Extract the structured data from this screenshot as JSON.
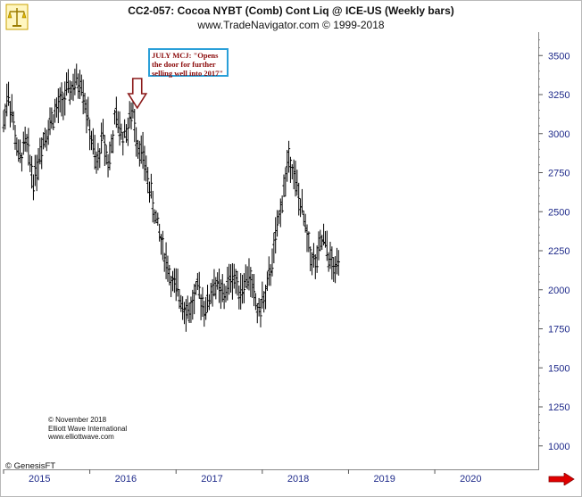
{
  "header": {
    "title": "CC2-057:  Cocoa NYBT (Comb) Cont Liq @ ICE-US  (Weekly bars)",
    "subtitle": "www.TradeNavigator.com © 1999-2018"
  },
  "annotation": {
    "text": "JULY MCJ: \"Opens the door for further selling well into 2017\"",
    "arrow_x": 2016.55
  },
  "credit": {
    "line1": "© November 2018",
    "line2": "Elliott Wave International",
    "line3": "www.elliottwave.com"
  },
  "brand": "© GenesisFT",
  "icons": {
    "logo": "scale-icon",
    "nav": "right-arrow-icon"
  },
  "colors": {
    "bars": "#000000",
    "annotation_border": "#2a9fd8",
    "annotation_text": "#8b0a0a",
    "arrow": "#8b1a1a",
    "axis_labels": "#1e2a8a",
    "nav_arrow": "#e00000"
  },
  "chart_data": {
    "type": "ohlc",
    "xlim": [
      2015.0,
      2021.2
    ],
    "ylim": [
      850,
      3650
    ],
    "x_ticks": [
      "2015",
      "2016",
      "2017",
      "2018",
      "2019",
      "2020"
    ],
    "y_ticks": [
      "3500",
      "3250",
      "3000",
      "2750",
      "2500",
      "2250",
      "2000",
      "1750",
      "1500",
      "1250",
      "1000"
    ],
    "price_path": [
      [
        2015.0,
        3060
      ],
      [
        2015.05,
        3280
      ],
      [
        2015.1,
        3120
      ],
      [
        2015.18,
        2820
      ],
      [
        2015.26,
        2950
      ],
      [
        2015.35,
        2700
      ],
      [
        2015.45,
        2950
      ],
      [
        2015.58,
        3120
      ],
      [
        2015.75,
        3270
      ],
      [
        2015.9,
        3350
      ],
      [
        2016.0,
        3020
      ],
      [
        2016.08,
        2780
      ],
      [
        2016.15,
        3000
      ],
      [
        2016.22,
        2800
      ],
      [
        2016.3,
        3110
      ],
      [
        2016.38,
        2980
      ],
      [
        2016.45,
        3050
      ],
      [
        2016.5,
        3150
      ],
      [
        2016.55,
        2950
      ],
      [
        2016.62,
        2850
      ],
      [
        2016.75,
        2500
      ],
      [
        2016.85,
        2260
      ],
      [
        2016.95,
        2050
      ],
      [
        2017.05,
        1950
      ],
      [
        2017.15,
        1850
      ],
      [
        2017.25,
        2000
      ],
      [
        2017.35,
        1880
      ],
      [
        2017.45,
        2050
      ],
      [
        2017.55,
        1950
      ],
      [
        2017.65,
        2100
      ],
      [
        2017.75,
        2000
      ],
      [
        2017.85,
        2100
      ],
      [
        2017.95,
        1850
      ],
      [
        2018.05,
        1980
      ],
      [
        2018.15,
        2300
      ],
      [
        2018.25,
        2650
      ],
      [
        2018.32,
        2870
      ],
      [
        2018.4,
        2650
      ],
      [
        2018.48,
        2450
      ],
      [
        2018.55,
        2250
      ],
      [
        2018.62,
        2150
      ],
      [
        2018.7,
        2330
      ],
      [
        2018.78,
        2200
      ],
      [
        2018.85,
        2100
      ],
      [
        2018.9,
        2300
      ]
    ]
  }
}
